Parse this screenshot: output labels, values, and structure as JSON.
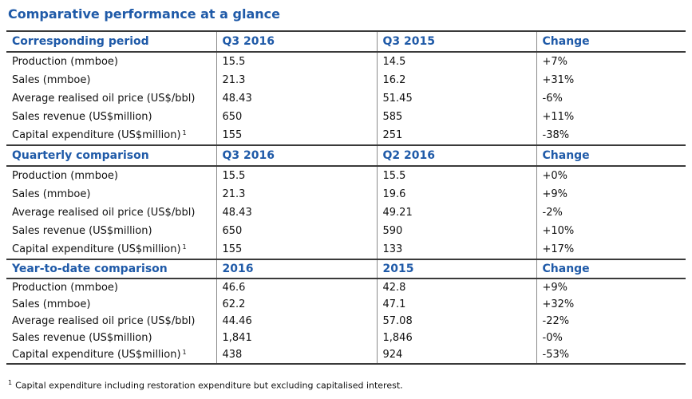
{
  "title": "Comparative performance at a glance",
  "footnote_marker": "1",
  "footnote_text": "Capital expenditure including restoration expenditure but excluding capitalised interest.",
  "sections": [
    {
      "header": [
        "Corresponding period",
        "Q3 2016",
        "Q3 2015",
        "Change"
      ],
      "rows": [
        {
          "label": "Production (mmboe)",
          "a": "15.5",
          "b": "14.5",
          "change": "+7%"
        },
        {
          "label": "Sales (mmboe)",
          "a": "21.3",
          "b": "16.2",
          "change": "+31%"
        },
        {
          "label": "Average realised oil price (US$/bbl)",
          "a": "48.43",
          "b": "51.45",
          "change": "-6%"
        },
        {
          "label": "Sales revenue (US$million)",
          "a": "650",
          "b": "585",
          "change": "+11%"
        },
        {
          "label": "Capital expenditure (US$million)",
          "footnote": "1",
          "a": "155",
          "b": "251",
          "change": "-38%"
        }
      ]
    },
    {
      "header": [
        "Quarterly comparison",
        "Q3 2016",
        "Q2 2016",
        "Change"
      ],
      "rows": [
        {
          "label": "Production (mmboe)",
          "a": "15.5",
          "b": "15.5",
          "change": "+0%"
        },
        {
          "label": "Sales (mmboe)",
          "a": "21.3",
          "b": "19.6",
          "change": "+9%"
        },
        {
          "label": "Average realised oil price (US$/bbl)",
          "a": "48.43",
          "b": "49.21",
          "change": "-2%"
        },
        {
          "label": "Sales revenue (US$million)",
          "a": "650",
          "b": "590",
          "change": "+10%"
        },
        {
          "label": "Capital expenditure (US$million)",
          "footnote": "1",
          "a": "155",
          "b": "133",
          "change": "+17%"
        }
      ]
    },
    {
      "header": [
        "Year-to-date comparison",
        "2016",
        "2015",
        "Change"
      ],
      "rows": [
        {
          "label": "Production (mmboe)",
          "a": "46.6",
          "b": "42.8",
          "change": "+9%"
        },
        {
          "label": "Sales (mmboe)",
          "a": "62.2",
          "b": "47.1",
          "change": "+32%"
        },
        {
          "label": "Average realised oil price (US$/bbl)",
          "a": "44.46",
          "b": "57.08",
          "change": "-22%"
        },
        {
          "label": "Sales revenue (US$million)",
          "a": "1,841",
          "b": "1,846",
          "change": "-0%"
        },
        {
          "label": "Capital expenditure (US$million)",
          "footnote": "1",
          "a": "438",
          "b": "924",
          "change": "-53%"
        }
      ]
    }
  ]
}
